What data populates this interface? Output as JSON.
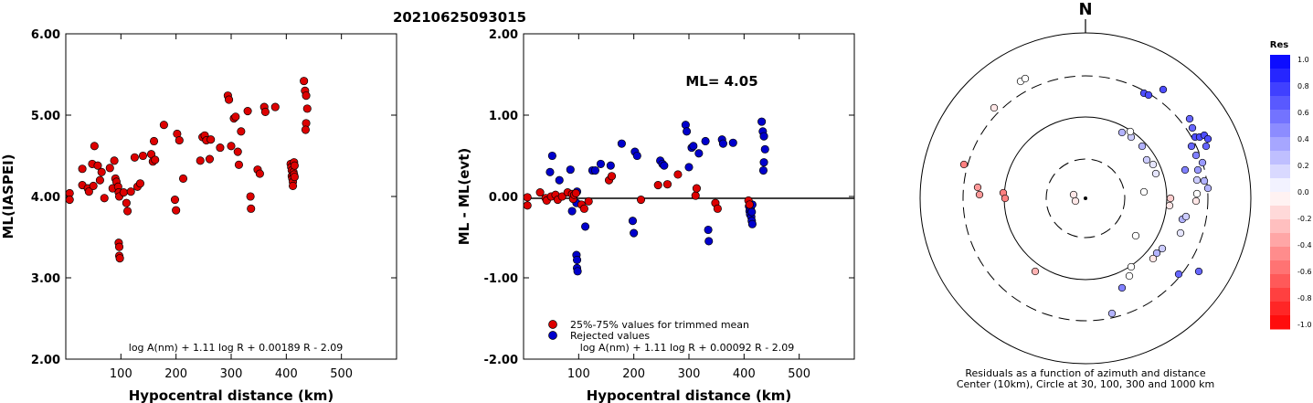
{
  "title": "20210625093015",
  "chart_data": [
    {
      "type": "scatter",
      "ylabel": "ML(IASPEI)",
      "xlabel": "Hypocentral distance (km)",
      "xlim": [
        0,
        600
      ],
      "ylim": [
        2.0,
        6.0
      ],
      "xticks": [
        "100",
        "200",
        "300",
        "400",
        "500"
      ],
      "yticks": [
        "2.00",
        "3.00",
        "4.00",
        "5.00",
        "6.00"
      ],
      "formula": "log A(nm) + 1.11 log R + 0.00189 R - 2.09",
      "marker_color": "#dd0000",
      "points": [
        [
          7,
          4.04
        ],
        [
          7,
          3.96
        ],
        [
          30,
          4.34
        ],
        [
          30,
          4.14
        ],
        [
          40,
          4.1
        ],
        [
          42,
          4.06
        ],
        [
          48,
          4.4
        ],
        [
          52,
          4.62
        ],
        [
          50,
          4.13
        ],
        [
          58,
          4.38
        ],
        [
          62,
          4.2
        ],
        [
          65,
          4.3
        ],
        [
          70,
          3.98
        ],
        [
          80,
          4.35
        ],
        [
          88,
          4.44
        ],
        [
          90,
          4.22
        ],
        [
          85,
          4.1
        ],
        [
          92,
          4.18
        ],
        [
          95,
          4.12
        ],
        [
          96,
          4.05
        ],
        [
          97,
          4.0
        ],
        [
          96,
          3.43
        ],
        [
          97,
          3.38
        ],
        [
          97,
          3.27
        ],
        [
          98,
          3.24
        ],
        [
          105,
          4.05
        ],
        [
          110,
          3.92
        ],
        [
          112,
          3.82
        ],
        [
          118,
          4.06
        ],
        [
          125,
          4.48
        ],
        [
          130,
          4.12
        ],
        [
          135,
          4.16
        ],
        [
          140,
          4.5
        ],
        [
          155,
          4.52
        ],
        [
          160,
          4.68
        ],
        [
          158,
          4.43
        ],
        [
          162,
          4.45
        ],
        [
          178,
          4.88
        ],
        [
          198,
          3.96
        ],
        [
          200,
          3.83
        ],
        [
          202,
          4.77
        ],
        [
          206,
          4.69
        ],
        [
          213,
          4.22
        ],
        [
          244,
          4.44
        ],
        [
          248,
          4.73
        ],
        [
          252,
          4.75
        ],
        [
          255,
          4.69
        ],
        [
          261,
          4.46
        ],
        [
          263,
          4.7
        ],
        [
          280,
          4.6
        ],
        [
          294,
          5.24
        ],
        [
          296,
          5.19
        ],
        [
          300,
          4.62
        ],
        [
          305,
          4.96
        ],
        [
          308,
          4.98
        ],
        [
          312,
          4.55
        ],
        [
          314,
          4.39
        ],
        [
          318,
          4.8
        ],
        [
          330,
          5.05
        ],
        [
          335,
          4.0
        ],
        [
          336,
          3.85
        ],
        [
          348,
          4.33
        ],
        [
          352,
          4.28
        ],
        [
          360,
          5.1
        ],
        [
          362,
          5.04
        ],
        [
          380,
          5.1
        ],
        [
          408,
          4.4
        ],
        [
          409,
          4.36
        ],
        [
          410,
          4.32
        ],
        [
          410,
          4.25
        ],
        [
          411,
          4.22
        ],
        [
          412,
          4.18
        ],
        [
          412,
          4.13
        ],
        [
          413,
          4.3
        ],
        [
          414,
          4.42
        ],
        [
          415,
          4.38
        ],
        [
          414,
          4.27
        ],
        [
          415,
          4.24
        ],
        [
          432,
          5.42
        ],
        [
          434,
          5.3
        ],
        [
          436,
          5.24
        ],
        [
          438,
          5.08
        ],
        [
          436,
          4.9
        ],
        [
          435,
          4.82
        ]
      ]
    },
    {
      "type": "scatter",
      "ylabel": "ML - ML(evt)",
      "xlabel": "Hypocentral distance (km)",
      "xlim": [
        0,
        600
      ],
      "ylim": [
        -2.0,
        2.0
      ],
      "xticks": [
        "100",
        "200",
        "300",
        "400",
        "500"
      ],
      "yticks": [
        "-2.00",
        "-1.00",
        "0.00",
        "1.00",
        "2.00"
      ],
      "annotation": "ML= 4.05",
      "formula": "log A(nm) + 1.11 log R + 0.00092 R - 2.09",
      "legend": [
        {
          "label": "25%-75% values for trimmed mean",
          "color": "#dd0000"
        },
        {
          "label": "Rejected values",
          "color": "#0000cc"
        }
      ],
      "trimmed": [
        [
          7,
          -0.01
        ],
        [
          7,
          -0.11
        ],
        [
          30,
          0.05
        ],
        [
          40,
          -0.02
        ],
        [
          42,
          -0.05
        ],
        [
          50,
          0.0
        ],
        [
          58,
          0.02
        ],
        [
          62,
          -0.04
        ],
        [
          70,
          0.0
        ],
        [
          80,
          0.05
        ],
        [
          88,
          0.03
        ],
        [
          90,
          -0.03
        ],
        [
          92,
          0.02
        ],
        [
          95,
          0.04
        ],
        [
          105,
          -0.1
        ],
        [
          110,
          -0.15
        ],
        [
          118,
          -0.06
        ],
        [
          155,
          0.2
        ],
        [
          160,
          0.25
        ],
        [
          213,
          -0.04
        ],
        [
          244,
          0.14
        ],
        [
          261,
          0.15
        ],
        [
          280,
          0.27
        ],
        [
          312,
          0.01
        ],
        [
          314,
          0.1
        ],
        [
          348,
          -0.08
        ],
        [
          352,
          -0.15
        ],
        [
          408,
          -0.05
        ],
        [
          410,
          -0.1
        ]
      ],
      "rejected": [
        [
          48,
          0.3
        ],
        [
          52,
          0.5
        ],
        [
          65,
          0.2
        ],
        [
          85,
          0.33
        ],
        [
          88,
          -0.18
        ],
        [
          96,
          -0.08
        ],
        [
          97,
          0.06
        ],
        [
          96,
          -0.72
        ],
        [
          97,
          -0.78
        ],
        [
          97,
          -0.88
        ],
        [
          98,
          -0.92
        ],
        [
          112,
          -0.37
        ],
        [
          125,
          0.32
        ],
        [
          130,
          0.32
        ],
        [
          140,
          0.4
        ],
        [
          158,
          0.38
        ],
        [
          178,
          0.65
        ],
        [
          198,
          -0.3
        ],
        [
          200,
          -0.45
        ],
        [
          202,
          0.55
        ],
        [
          206,
          0.5
        ],
        [
          248,
          0.44
        ],
        [
          252,
          0.4
        ],
        [
          255,
          0.38
        ],
        [
          294,
          0.88
        ],
        [
          296,
          0.8
        ],
        [
          300,
          0.36
        ],
        [
          305,
          0.6
        ],
        [
          308,
          0.62
        ],
        [
          318,
          0.53
        ],
        [
          330,
          0.68
        ],
        [
          335,
          -0.41
        ],
        [
          336,
          -0.55
        ],
        [
          360,
          0.7
        ],
        [
          362,
          0.65
        ],
        [
          380,
          0.66
        ],
        [
          409,
          -0.12
        ],
        [
          410,
          -0.18
        ],
        [
          411,
          -0.22
        ],
        [
          412,
          -0.15
        ],
        [
          413,
          -0.25
        ],
        [
          414,
          -0.3
        ],
        [
          414,
          -0.19
        ],
        [
          415,
          -0.34
        ],
        [
          415,
          -0.1
        ],
        [
          432,
          0.92
        ],
        [
          434,
          0.8
        ],
        [
          436,
          0.74
        ],
        [
          438,
          0.58
        ],
        [
          436,
          0.42
        ],
        [
          435,
          0.32
        ]
      ]
    },
    {
      "type": "polar-scatter",
      "north_label": "N",
      "caption_line1": "Residuals as a function of azimuth and distance",
      "caption_line2": "Center (10km), Circle at 30, 100, 300 and 1000 km",
      "colorbar_title": "Res",
      "colorbar_ticks": [
        "1.0",
        "0.8",
        "0.6",
        "0.4",
        "0.2",
        "0.0",
        "-0.2",
        "-0.4",
        "-0.6",
        "-0.8",
        "-1.0"
      ],
      "points": [
        [
          1117,
          89,
          0.0
        ],
        [
          1122,
          86,
          0.0
        ],
        [
          1088,
          118,
          -0.1
        ],
        [
          1055,
          180,
          -0.5
        ],
        [
          1070,
          205,
          -0.4
        ],
        [
          1072,
          213,
          -0.4
        ],
        [
          1098,
          211,
          -0.5
        ],
        [
          1100,
          217,
          -0.5
        ],
        [
          1133,
          297,
          -0.3
        ],
        [
          1175,
          213,
          -0.1
        ],
        [
          1177,
          220,
          -0.1
        ],
        [
          1252,
          102,
          0.7
        ],
        [
          1257,
          104,
          0.7
        ],
        [
          1273,
          98,
          0.7
        ],
        [
          1302,
          130,
          0.6
        ],
        [
          1305,
          140,
          0.6
        ],
        [
          1308,
          150,
          0.7
        ],
        [
          1304,
          160,
          0.6
        ],
        [
          1313,
          150,
          0.7
        ],
        [
          1318,
          148,
          0.7
        ],
        [
          1322,
          152,
          0.7
        ],
        [
          1320,
          160,
          0.6
        ],
        [
          1309,
          170,
          0.5
        ],
        [
          1316,
          178,
          0.4
        ],
        [
          1297,
          186,
          0.5
        ],
        [
          1311,
          186,
          0.4
        ],
        [
          1318,
          198,
          0.3
        ],
        [
          1322,
          206,
          0.3
        ],
        [
          1310,
          212,
          0.0
        ],
        [
          1309,
          220,
          -0.1
        ],
        [
          1310,
          197,
          0.2
        ],
        [
          1228,
          145,
          0.3
        ],
        [
          1238,
          150,
          0.2
        ],
        [
          1250,
          160,
          0.3
        ],
        [
          1255,
          175,
          0.2
        ],
        [
          1262,
          180,
          0.1
        ],
        [
          1265,
          190,
          0.1
        ],
        [
          1252,
          210,
          0.0
        ],
        [
          1281,
          217,
          -0.2
        ],
        [
          1280,
          225,
          -0.1
        ],
        [
          1294,
          240,
          0.3
        ],
        [
          1292,
          255,
          0.1
        ],
        [
          1243,
          258,
          0.0
        ],
        [
          1272,
          272,
          0.2
        ],
        [
          1266,
          277,
          0.3
        ],
        [
          1262,
          283,
          -0.1
        ],
        [
          1238,
          292,
          0.0
        ],
        [
          1236,
          302,
          0.0
        ],
        [
          1228,
          315,
          0.5
        ],
        [
          1290,
          300,
          0.6
        ],
        [
          1312,
          297,
          0.6
        ],
        [
          1217,
          343,
          0.3
        ],
        [
          1237,
          144,
          0.0
        ],
        [
          1298,
          237,
          0.2
        ]
      ]
    }
  ]
}
